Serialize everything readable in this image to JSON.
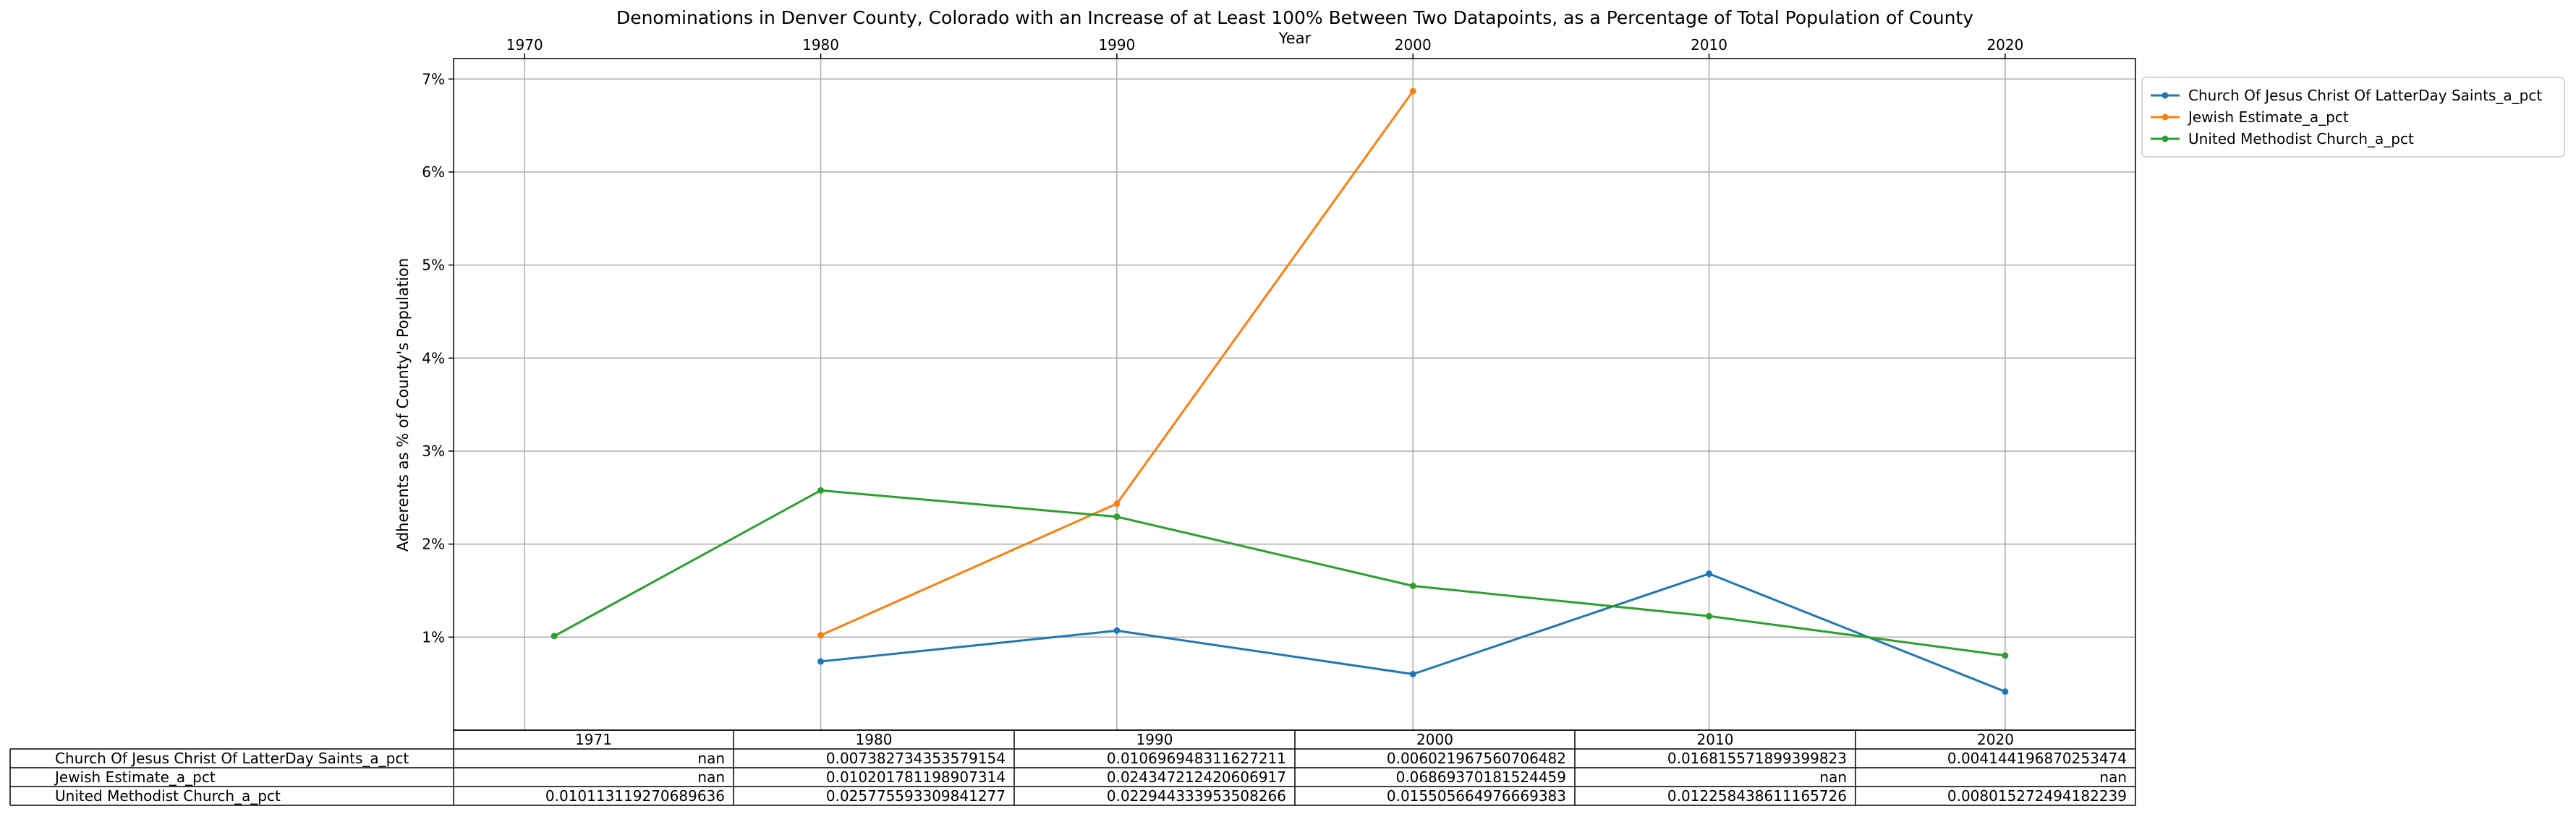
{
  "chart_data": {
    "type": "line",
    "title": "Denominations in Denver County, Colorado with an Increase of at Least 100% Between Two Datapoints, as a Percentage of Total Population of County",
    "xlabel": "Year",
    "ylabel": "Adherents as % of County's Population",
    "x_ticks": [
      "1970",
      "1980",
      "1990",
      "2000",
      "2010",
      "2020"
    ],
    "y_ticks": [
      "1%",
      "2%",
      "3%",
      "4%",
      "5%",
      "6%",
      "7%"
    ],
    "xlim": [
      1967.6,
      2024.4
    ],
    "ylim": [
      0.0,
      0.0722
    ],
    "grid": true,
    "legend_position": "outside right, top",
    "x": [
      1971,
      1980,
      1990,
      2000,
      2010,
      2020
    ],
    "series": [
      {
        "name": "Church Of Jesus Christ Of LatterDay Saints_a_pct",
        "color": "#1f77b4",
        "values": [
          null,
          0.007382734353579154,
          0.010696948311627211,
          0.006021967560706482,
          0.016815571899399823,
          0.004144196870253474
        ]
      },
      {
        "name": "Jewish Estimate_a_pct",
        "color": "#ff7f0e",
        "values": [
          null,
          0.010201781198907314,
          0.024347212420606917,
          0.06869370181524459,
          null,
          null
        ]
      },
      {
        "name": "United Methodist Church_a_pct",
        "color": "#2ca02c",
        "values": [
          0.010113119270689636,
          0.025775593309841277,
          0.022944333953508266,
          0.015505664976669383,
          0.012258438611165726,
          0.008015272494182239
        ]
      }
    ],
    "table": {
      "col_labels": [
        "1971",
        "1980",
        "1990",
        "2000",
        "2010",
        "2020"
      ],
      "rows": [
        {
          "label": "Church Of Jesus Christ Of LatterDay Saints_a_pct",
          "cells": [
            "nan",
            "0.007382734353579154",
            "0.010696948311627211",
            "0.006021967560706482",
            "0.016815571899399823",
            "0.004144196870253474"
          ]
        },
        {
          "label": "Jewish Estimate_a_pct",
          "cells": [
            "nan",
            "0.010201781198907314",
            "0.024347212420606917",
            "0.06869370181524459",
            "nan",
            "nan"
          ]
        },
        {
          "label": "United Methodist Church_a_pct",
          "cells": [
            "0.010113119270689636",
            "0.025775593309841277",
            "0.022944333953508266",
            "0.015505664976669383",
            "0.012258438611165726",
            "0.008015272494182239"
          ]
        }
      ]
    }
  }
}
